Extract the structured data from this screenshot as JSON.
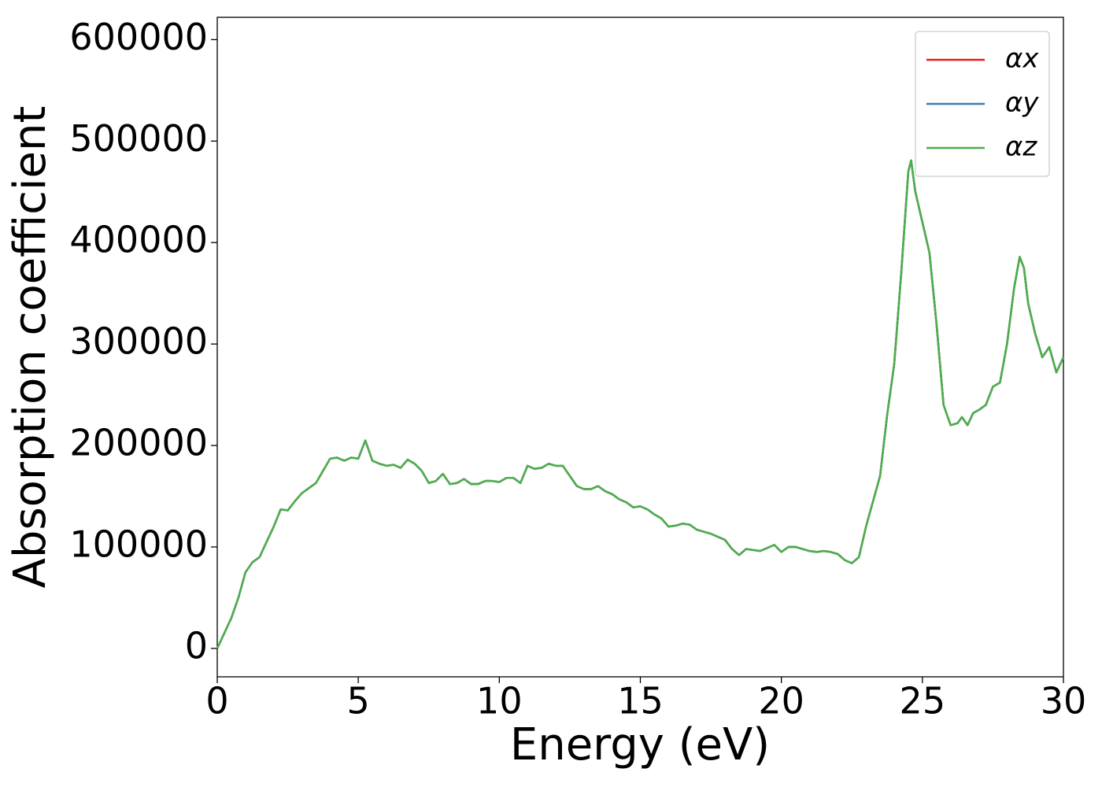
{
  "chart_data": {
    "type": "line",
    "xlabel": "Energy (eV)",
    "ylabel": "Absorption coefficient",
    "x": [
      0,
      0.25,
      0.5,
      0.75,
      1.0,
      1.25,
      1.5,
      1.75,
      2.0,
      2.25,
      2.5,
      2.75,
      3.0,
      3.25,
      3.5,
      3.75,
      4.0,
      4.25,
      4.5,
      4.75,
      5.0,
      5.25,
      5.5,
      5.75,
      6.0,
      6.25,
      6.5,
      6.75,
      7.0,
      7.25,
      7.5,
      7.75,
      8.0,
      8.25,
      8.5,
      8.75,
      9.0,
      9.25,
      9.5,
      9.75,
      10.0,
      10.25,
      10.5,
      10.75,
      11.0,
      11.25,
      11.5,
      11.75,
      12.0,
      12.25,
      12.5,
      12.75,
      13.0,
      13.25,
      13.5,
      13.75,
      14.0,
      14.25,
      14.5,
      14.75,
      15.0,
      15.25,
      15.5,
      15.75,
      16.0,
      16.25,
      16.5,
      16.75,
      17.0,
      17.25,
      17.5,
      17.75,
      18.0,
      18.25,
      18.5,
      18.75,
      19.0,
      19.25,
      19.5,
      19.75,
      20.0,
      20.25,
      20.5,
      20.75,
      21.0,
      21.25,
      21.5,
      21.75,
      22.0,
      22.25,
      22.5,
      22.75,
      23.0,
      23.25,
      23.5,
      23.75,
      24.0,
      24.25,
      24.5,
      24.6,
      24.75,
      25.0,
      25.25,
      25.5,
      25.75,
      26.0,
      26.25,
      26.4,
      26.6,
      26.8,
      27.0,
      27.25,
      27.5,
      27.75,
      28.0,
      28.25,
      28.45,
      28.6,
      28.75,
      29.0,
      29.25,
      29.5,
      29.75,
      30.0
    ],
    "series": [
      {
        "name": "αx",
        "color": "#e41a1c",
        "values": [
          0,
          15000,
          30000,
          50000,
          75000,
          85000,
          90000,
          105000,
          120000,
          137000,
          136000,
          145000,
          153000,
          158000,
          163000,
          175000,
          187000,
          188000,
          185000,
          188000,
          187000,
          205000,
          185000,
          182000,
          180000,
          181000,
          178000,
          186000,
          182000,
          175000,
          163000,
          165000,
          172000,
          162000,
          163000,
          167000,
          162000,
          162000,
          165000,
          165000,
          164000,
          168000,
          168000,
          163000,
          180000,
          177000,
          178000,
          182000,
          180000,
          180000,
          170000,
          160000,
          157000,
          157000,
          160000,
          155000,
          152000,
          147000,
          144000,
          139000,
          140000,
          137000,
          132000,
          128000,
          120000,
          121000,
          123000,
          122000,
          117000,
          115000,
          113000,
          110000,
          107000,
          98000,
          92000,
          98000,
          97000,
          96000,
          99000,
          102000,
          95000,
          100000,
          100000,
          98000,
          96000,
          95000,
          96000,
          95000,
          93000,
          87000,
          84000,
          90000,
          120000,
          145000,
          170000,
          230000,
          280000,
          370000,
          470000,
          481000,
          450000,
          420000,
          390000,
          320000,
          240000,
          220000,
          222000,
          228000,
          220000,
          232000,
          235000,
          240000,
          258000,
          262000,
          300000,
          355000,
          386000,
          375000,
          340000,
          310000,
          287000,
          297000,
          272000,
          287000
        ]
      },
      {
        "name": "αy",
        "color": "#377eb8",
        "values": [
          0,
          15000,
          30000,
          50000,
          75000,
          85000,
          90000,
          105000,
          120000,
          137000,
          136000,
          145000,
          153000,
          158000,
          163000,
          175000,
          187000,
          188000,
          185000,
          188000,
          187000,
          205000,
          185000,
          182000,
          180000,
          181000,
          178000,
          186000,
          182000,
          175000,
          163000,
          165000,
          172000,
          162000,
          163000,
          167000,
          162000,
          162000,
          165000,
          165000,
          164000,
          168000,
          168000,
          163000,
          180000,
          177000,
          178000,
          182000,
          180000,
          180000,
          170000,
          160000,
          157000,
          157000,
          160000,
          155000,
          152000,
          147000,
          144000,
          139000,
          140000,
          137000,
          132000,
          128000,
          120000,
          121000,
          123000,
          122000,
          117000,
          115000,
          113000,
          110000,
          107000,
          98000,
          92000,
          98000,
          97000,
          96000,
          99000,
          102000,
          95000,
          100000,
          100000,
          98000,
          96000,
          95000,
          96000,
          95000,
          93000,
          87000,
          84000,
          90000,
          120000,
          145000,
          170000,
          230000,
          280000,
          370000,
          470000,
          481000,
          450000,
          420000,
          390000,
          320000,
          240000,
          220000,
          222000,
          228000,
          220000,
          232000,
          235000,
          240000,
          258000,
          262000,
          300000,
          355000,
          386000,
          375000,
          340000,
          310000,
          287000,
          297000,
          272000,
          287000
        ]
      },
      {
        "name": "αz",
        "color": "#4daf4a",
        "values": [
          0,
          15000,
          30000,
          50000,
          75000,
          85000,
          90000,
          105000,
          120000,
          137000,
          136000,
          145000,
          153000,
          158000,
          163000,
          175000,
          187000,
          188000,
          185000,
          188000,
          187000,
          205000,
          185000,
          182000,
          180000,
          181000,
          178000,
          186000,
          182000,
          175000,
          163000,
          165000,
          172000,
          162000,
          163000,
          167000,
          162000,
          162000,
          165000,
          165000,
          164000,
          168000,
          168000,
          163000,
          180000,
          177000,
          178000,
          182000,
          180000,
          180000,
          170000,
          160000,
          157000,
          157000,
          160000,
          155000,
          152000,
          147000,
          144000,
          139000,
          140000,
          137000,
          132000,
          128000,
          120000,
          121000,
          123000,
          122000,
          117000,
          115000,
          113000,
          110000,
          107000,
          98000,
          92000,
          98000,
          97000,
          96000,
          99000,
          102000,
          95000,
          100000,
          100000,
          98000,
          96000,
          95000,
          96000,
          95000,
          93000,
          87000,
          84000,
          90000,
          120000,
          145000,
          170000,
          230000,
          280000,
          370000,
          470000,
          481000,
          450000,
          420000,
          390000,
          320000,
          240000,
          220000,
          222000,
          228000,
          220000,
          232000,
          235000,
          240000,
          258000,
          262000,
          300000,
          355000,
          386000,
          375000,
          340000,
          310000,
          287000,
          297000,
          272000,
          287000
        ]
      }
    ],
    "xlim": [
      0,
      30
    ],
    "xticks": [
      0,
      5,
      10,
      15,
      20,
      25,
      30
    ],
    "ylim": [
      -28000,
      622000
    ],
    "yticks": [
      0,
      100000,
      200000,
      300000,
      400000,
      500000,
      600000
    ],
    "legend": "upper right"
  }
}
